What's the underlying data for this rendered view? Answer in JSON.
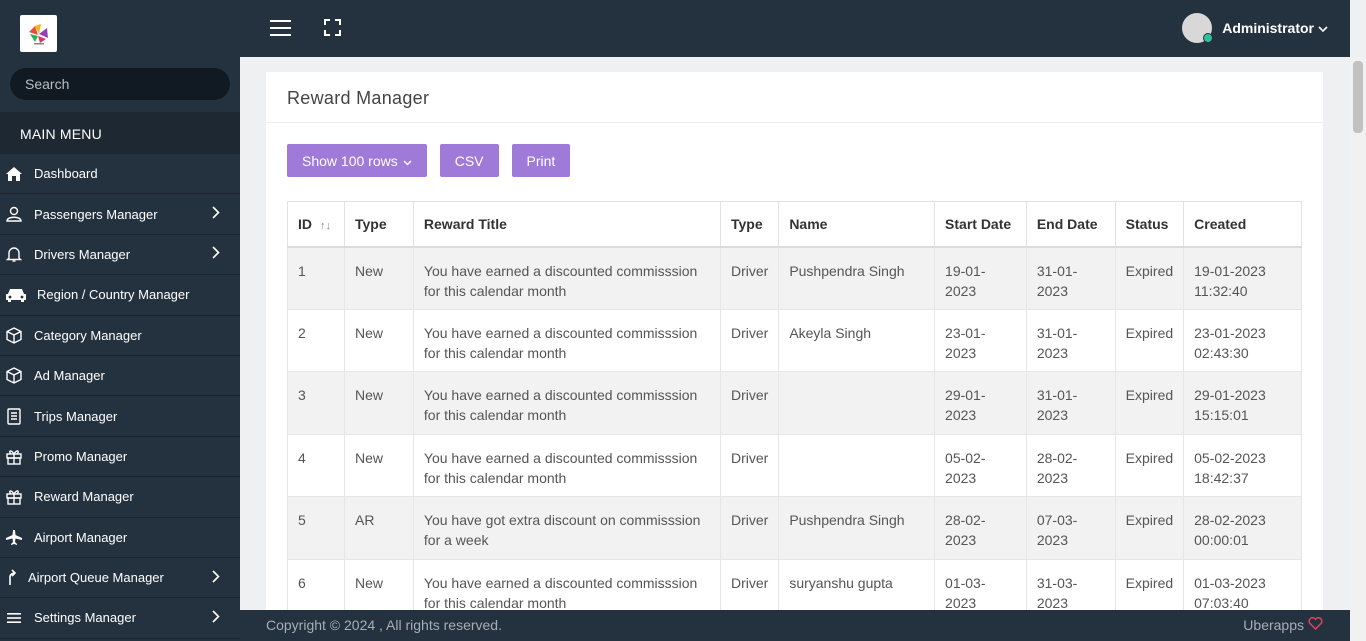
{
  "header": {
    "user_name": "Administrator"
  },
  "sidebar": {
    "search_placeholder": "Search",
    "section_title": "MAIN MENU",
    "items": [
      {
        "label": "Dashboard",
        "icon": "home-icon",
        "has_submenu": false
      },
      {
        "label": "Passengers Manager",
        "icon": "user-icon",
        "has_submenu": true
      },
      {
        "label": "Drivers Manager",
        "icon": "bell-icon",
        "has_submenu": true
      },
      {
        "label": "Region / Country Manager",
        "icon": "car-icon",
        "has_submenu": false
      },
      {
        "label": "Category Manager",
        "icon": "box-icon",
        "has_submenu": false
      },
      {
        "label": "Ad Manager",
        "icon": "box-icon",
        "has_submenu": false
      },
      {
        "label": "Trips Manager",
        "icon": "document-icon",
        "has_submenu": false
      },
      {
        "label": "Promo Manager",
        "icon": "gift-icon",
        "has_submenu": false
      },
      {
        "label": "Reward Manager",
        "icon": "gift-icon",
        "has_submenu": false
      },
      {
        "label": "Airport Manager",
        "icon": "plane-icon",
        "has_submenu": false
      },
      {
        "label": "Airport Queue Manager",
        "icon": "arrow-up-icon",
        "has_submenu": true
      },
      {
        "label": "Settings Manager",
        "icon": "list-icon",
        "has_submenu": true
      }
    ]
  },
  "page": {
    "title": "Reward Manager",
    "buttons": {
      "show_rows": "Show 100 rows",
      "csv": "CSV",
      "print": "Print"
    }
  },
  "table": {
    "columns": [
      "ID",
      "Type",
      "Reward Title",
      "Type",
      "Name",
      "Start Date",
      "End Date",
      "Status",
      "Created"
    ],
    "rows": [
      [
        "1",
        "New",
        "You have earned a discounted commisssion for this calendar month",
        "Driver",
        "Pushpendra Singh",
        "19-01-2023",
        "31-01-2023",
        "Expired",
        "19-01-2023 11:32:40"
      ],
      [
        "2",
        "New",
        "You have earned a discounted commisssion for this calendar month",
        "Driver",
        "Akeyla Singh",
        "23-01-2023",
        "31-01-2023",
        "Expired",
        "23-01-2023 02:43:30"
      ],
      [
        "3",
        "New",
        "You have earned a discounted commisssion for this calendar month",
        "Driver",
        "",
        "29-01-2023",
        "31-01-2023",
        "Expired",
        "29-01-2023 15:15:01"
      ],
      [
        "4",
        "New",
        "You have earned a discounted commisssion for this calendar month",
        "Driver",
        "",
        "05-02-2023",
        "28-02-2023",
        "Expired",
        "05-02-2023 18:42:37"
      ],
      [
        "5",
        "AR",
        "You have got extra discount on commisssion for a week",
        "Driver",
        "Pushpendra Singh",
        "28-02-2023",
        "07-03-2023",
        "Expired",
        "28-02-2023 00:00:01"
      ],
      [
        "6",
        "New",
        "You have earned a discounted commisssion for this calendar month",
        "Driver",
        "suryanshu gupta",
        "01-03-2023",
        "31-03-2023",
        "Expired",
        "01-03-2023 07:03:40"
      ]
    ]
  },
  "footer": {
    "copyright": "Copyright © 2024 , All rights reserved.",
    "brand": "Uberapps"
  },
  "colors": {
    "sidebar_bg": "#24313e",
    "accent": "#a07ad8",
    "heart": "#e0435a"
  }
}
